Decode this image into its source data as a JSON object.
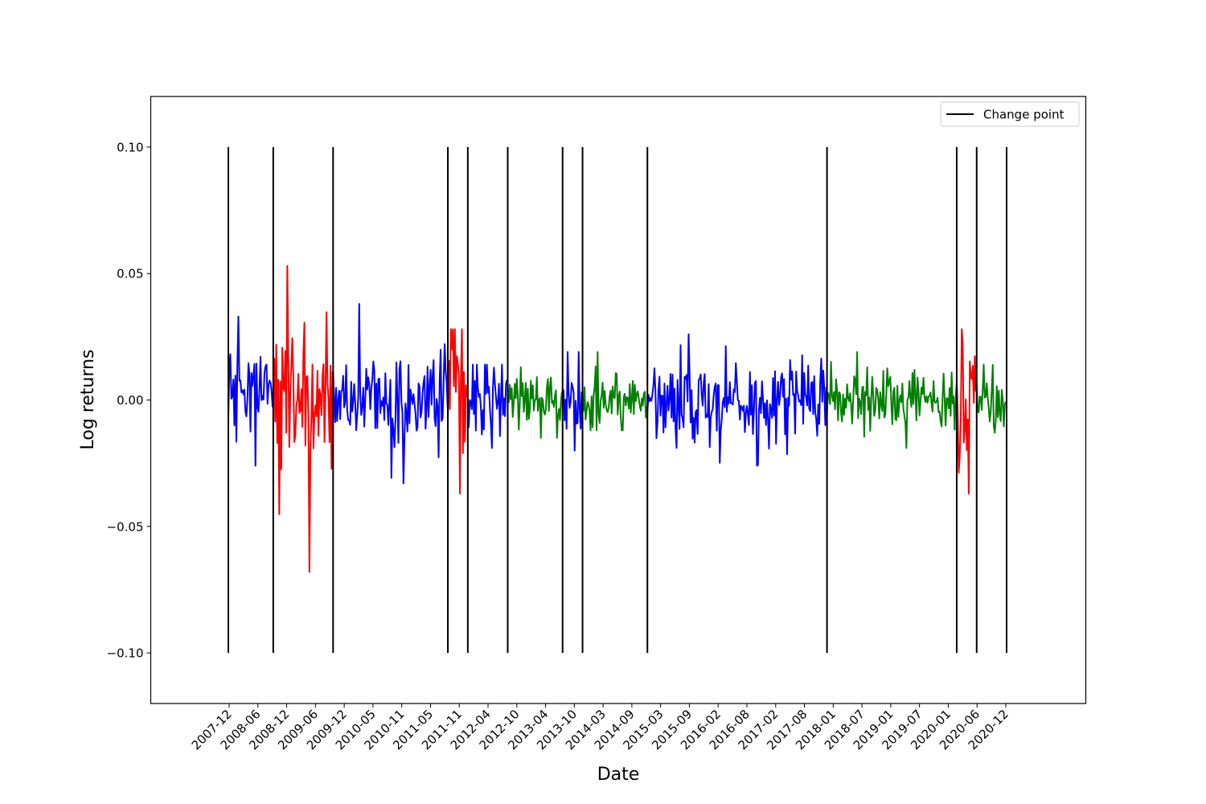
{
  "chart_data": {
    "type": "line",
    "title": "",
    "xlabel": "Date",
    "ylabel": "Log returns",
    "x_axis": "date",
    "xlim": [
      "2007-06",
      "2021-06"
    ],
    "ylim": [
      -0.12,
      0.12
    ],
    "x_tick_labels": [
      "2007-12",
      "2008-06",
      "2008-12",
      "2009-06",
      "2009-12",
      "2010-05",
      "2010-11",
      "2011-05",
      "2011-11",
      "2012-04",
      "2012-10",
      "2013-04",
      "2013-10",
      "2014-03",
      "2014-09",
      "2015-03",
      "2015-09",
      "2016-02",
      "2016-08",
      "2017-02",
      "2017-08",
      "2018-01",
      "2018-07",
      "2019-01",
      "2019-07",
      "2020-01",
      "2020-06",
      "2020-12"
    ],
    "y_ticks": [
      -0.1,
      -0.05,
      0.0,
      0.05,
      0.1
    ],
    "y_tick_labels": [
      "−0.10",
      "−0.05",
      "0.00",
      "0.05",
      "0.10"
    ],
    "grid": false,
    "legend": {
      "position": "top-right",
      "entries": [
        {
          "label": "Change point",
          "color": "#000000"
        }
      ]
    },
    "change_points": {
      "ymin": -0.1,
      "ymax": 0.1,
      "color": "#000000",
      "dates": [
        "2007-12",
        "2008-09",
        "2009-09",
        "2011-08",
        "2011-12",
        "2012-08",
        "2013-07",
        "2013-11",
        "2014-12",
        "2017-12",
        "2020-02",
        "2020-06",
        "2020-12"
      ]
    },
    "segments": [
      {
        "start": "2007-12",
        "end": "2008-09",
        "regime": "medium",
        "color": "#0000ff",
        "approx_min": -0.026,
        "approx_max": 0.033
      },
      {
        "start": "2008-09",
        "end": "2009-09",
        "regime": "high",
        "color": "#ff0000",
        "approx_min": -0.068,
        "approx_max": 0.053
      },
      {
        "start": "2009-09",
        "end": "2011-08",
        "regime": "medium",
        "color": "#0000ff",
        "approx_min": -0.033,
        "approx_max": 0.038
      },
      {
        "start": "2011-08",
        "end": "2011-12",
        "regime": "high",
        "color": "#ff0000",
        "approx_min": -0.037,
        "approx_max": 0.028
      },
      {
        "start": "2011-12",
        "end": "2012-08",
        "regime": "medium",
        "color": "#0000ff",
        "approx_min": -0.019,
        "approx_max": 0.014
      },
      {
        "start": "2012-08",
        "end": "2013-07",
        "regime": "low",
        "color": "#008000",
        "approx_min": -0.015,
        "approx_max": 0.013
      },
      {
        "start": "2013-07",
        "end": "2013-11",
        "regime": "medium",
        "color": "#0000ff",
        "approx_min": -0.02,
        "approx_max": 0.019
      },
      {
        "start": "2013-11",
        "end": "2014-12",
        "regime": "low",
        "color": "#008000",
        "approx_min": -0.012,
        "approx_max": 0.019
      },
      {
        "start": "2014-12",
        "end": "2017-12",
        "regime": "medium",
        "color": "#0000ff",
        "approx_min": -0.026,
        "approx_max": 0.026
      },
      {
        "start": "2017-12",
        "end": "2020-02",
        "regime": "low",
        "color": "#008000",
        "approx_min": -0.019,
        "approx_max": 0.019
      },
      {
        "start": "2020-02",
        "end": "2020-06",
        "regime": "high",
        "color": "#ff0000",
        "approx_min": -0.037,
        "approx_max": 0.028
      },
      {
        "start": "2020-06",
        "end": "2020-12",
        "regime": "low",
        "color": "#008000",
        "approx_min": -0.013,
        "approx_max": 0.014
      }
    ],
    "regime_colors": {
      "high": "#ff0000",
      "medium": "#0000ff",
      "low": "#008000"
    }
  }
}
